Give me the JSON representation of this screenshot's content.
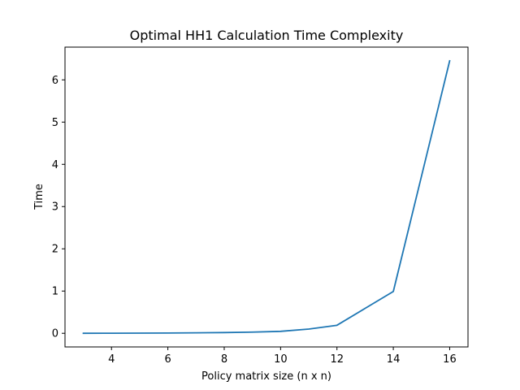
{
  "chart_data": {
    "type": "line",
    "title": "Optimal HH1 Calculation Time Complexity",
    "xlabel": "Policy matrix size (n x n)",
    "ylabel": "Time",
    "xlim": [
      2.35,
      16.65
    ],
    "ylim": [
      -0.323,
      6.775
    ],
    "xticks": [
      4,
      6,
      8,
      10,
      12,
      14,
      16
    ],
    "yticks": [
      0,
      1,
      2,
      3,
      4,
      5,
      6
    ],
    "grid": false,
    "legend": "none",
    "series": [
      {
        "color": "#1f77b4",
        "x": [
          3,
          4,
          5,
          6,
          7,
          8,
          9,
          10,
          11,
          12,
          13,
          14,
          15,
          16
        ],
        "y": [
          0.0,
          0.002,
          0.004,
          0.007,
          0.011,
          0.017,
          0.028,
          0.046,
          0.1,
          0.19,
          0.59,
          0.99,
          3.72,
          6.45
        ]
      }
    ]
  }
}
